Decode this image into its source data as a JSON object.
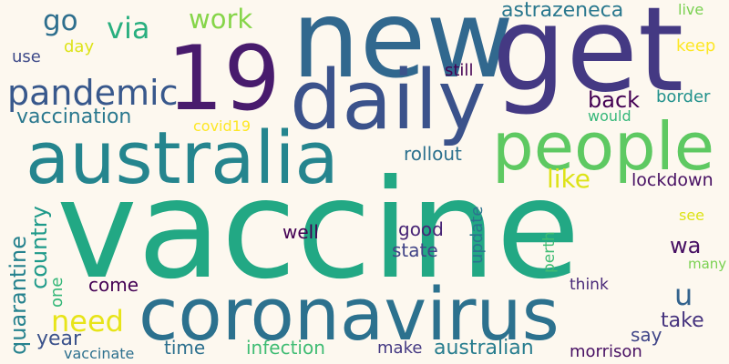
{
  "background": "#fdf8ef",
  "words": [
    {
      "text": "vaccine",
      "color": "#22a884"
    },
    {
      "text": "new",
      "color": "#31688e"
    },
    {
      "text": "get",
      "color": "#443983"
    },
    {
      "text": "19",
      "color": "#481b6d"
    },
    {
      "text": "daily",
      "color": "#3b528b"
    },
    {
      "text": "australia",
      "color": "#25858e"
    },
    {
      "text": "coronavirus",
      "color": "#2c718e"
    },
    {
      "text": "people",
      "color": "#5ec962"
    },
    {
      "text": "pandemic",
      "color": "#38588c"
    },
    {
      "text": "vaccination",
      "color": "#2a788e"
    },
    {
      "text": "work",
      "color": "#86d549"
    },
    {
      "text": "via",
      "color": "#29af7f"
    },
    {
      "text": "go",
      "color": "#2e6f8e"
    },
    {
      "text": "day",
      "color": "#dde318"
    },
    {
      "text": "use",
      "color": "#3e4a89"
    },
    {
      "text": "astrazeneca",
      "color": "#2a788e"
    },
    {
      "text": "live",
      "color": "#7ad151"
    },
    {
      "text": "keep",
      "color": "#fde725"
    },
    {
      "text": "still",
      "color": "#440154"
    },
    {
      "text": "back",
      "color": "#440154"
    },
    {
      "text": "border",
      "color": "#21918c"
    },
    {
      "text": "would",
      "color": "#35b779"
    },
    {
      "text": "covid19",
      "color": "#fde725"
    },
    {
      "text": "rollout",
      "color": "#2c718e"
    },
    {
      "text": "like",
      "color": "#dde318"
    },
    {
      "text": "lockdown",
      "color": "#471063"
    },
    {
      "text": "quarantine",
      "color": "#26828e"
    },
    {
      "text": "country",
      "color": "#1f9a8a"
    },
    {
      "text": "one",
      "color": "#35b779"
    },
    {
      "text": "well",
      "color": "#440154"
    },
    {
      "text": "good",
      "color": "#482576"
    },
    {
      "text": "state",
      "color": "#414487"
    },
    {
      "text": "update",
      "color": "#2c728e"
    },
    {
      "text": "perth",
      "color": "#3fbc73"
    },
    {
      "text": "see",
      "color": "#dde318"
    },
    {
      "text": "wa",
      "color": "#471063"
    },
    {
      "text": "many",
      "color": "#7ad151"
    },
    {
      "text": "need",
      "color": "#e7e419"
    },
    {
      "text": "come",
      "color": "#440154"
    },
    {
      "text": "u",
      "color": "#33638d"
    },
    {
      "text": "take",
      "color": "#46337e"
    },
    {
      "text": "think",
      "color": "#482878"
    },
    {
      "text": "year",
      "color": "#3b528b"
    },
    {
      "text": "time",
      "color": "#2d708e"
    },
    {
      "text": "infection",
      "color": "#3fbc73"
    },
    {
      "text": "make",
      "color": "#443983"
    },
    {
      "text": "australian",
      "color": "#287d8e"
    },
    {
      "text": "say",
      "color": "#404688"
    },
    {
      "text": "vaccinate",
      "color": "#2d708e"
    },
    {
      "text": "morrison",
      "color": "#471063"
    }
  ]
}
